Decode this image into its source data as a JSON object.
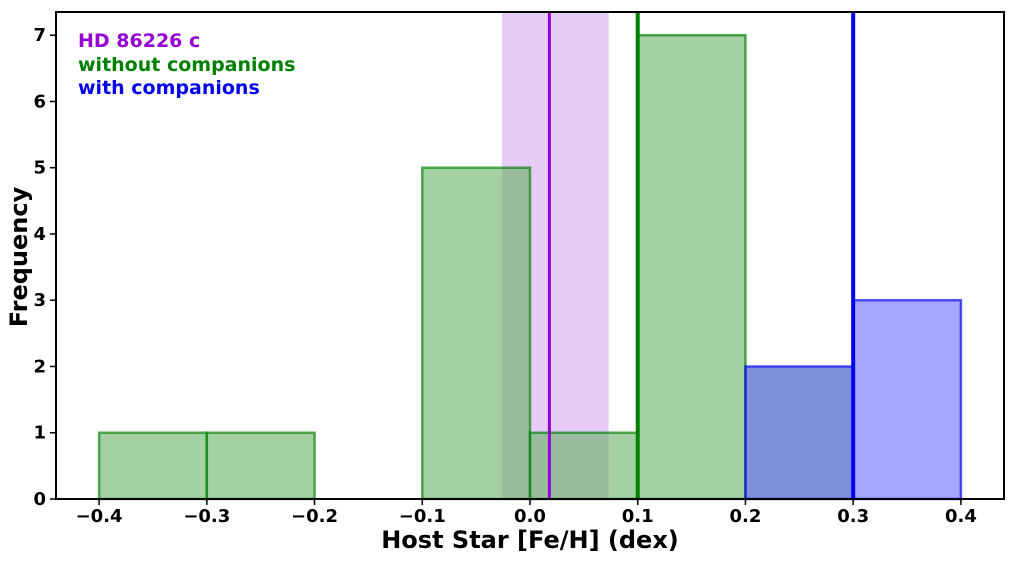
{
  "chart_data": {
    "type": "bar",
    "xlabel": "Host Star [Fe/H] (dex)",
    "ylabel": "Frequency",
    "xlim": [
      -0.44,
      0.44
    ],
    "ylim": [
      0,
      7.35
    ],
    "xticks": [
      -0.4,
      -0.3,
      -0.2,
      -0.1,
      0.0,
      0.1,
      0.2,
      0.3,
      0.4
    ],
    "xtick_labels": [
      "−0.4",
      "−0.3",
      "−0.2",
      "−0.1",
      "0.0",
      "0.1",
      "0.2",
      "0.3",
      "0.4"
    ],
    "yticks": [
      0,
      1,
      2,
      3,
      4,
      5,
      6,
      7
    ],
    "ytick_labels": [
      "0",
      "1",
      "2",
      "3",
      "4",
      "5",
      "6",
      "7"
    ],
    "grid": false,
    "legend_position": "top-left",
    "series": [
      {
        "name": "without companions",
        "color": "#008000",
        "fill": "#66b366",
        "bins": [
          {
            "x0": -0.4,
            "x1": -0.3,
            "count": 1
          },
          {
            "x0": -0.3,
            "x1": -0.2,
            "count": 1
          },
          {
            "x0": -0.1,
            "x1": 0.0,
            "count": 5
          },
          {
            "x0": 0.0,
            "x1": 0.1,
            "count": 1
          },
          {
            "x0": 0.1,
            "x1": 0.2,
            "count": 7
          }
        ],
        "median_line": 0.1
      },
      {
        "name": "with companions",
        "color": "#0000ee",
        "fill": "#6b6bff",
        "bins": [
          {
            "x0": 0.2,
            "x1": 0.3,
            "count": 2,
            "fill": "#2c48c2"
          },
          {
            "x0": 0.3,
            "x1": 0.4,
            "count": 3
          }
        ],
        "median_line": 0.3
      },
      {
        "name": "HD 86226 c",
        "color": "#9400d3",
        "value": 0.018,
        "band": [
          -0.026,
          0.073
        ],
        "band_color": "#e6cbf5"
      }
    ]
  }
}
